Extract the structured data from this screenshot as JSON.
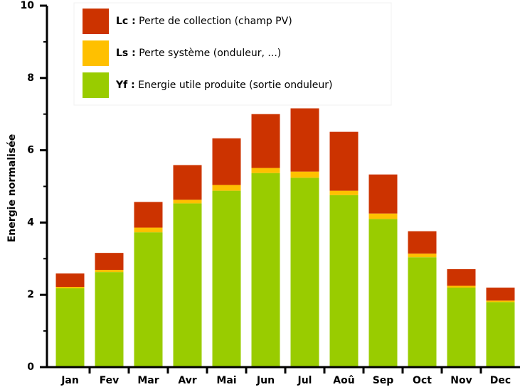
{
  "chart_data": {
    "type": "stacked_bar",
    "y_label": "Energie normalisée",
    "categories": [
      "Jan",
      "Fev",
      "Mar",
      "Avr",
      "Mai",
      "Jun",
      "Jul",
      "Aoû",
      "Sep",
      "Oct",
      "Nov",
      "Dec"
    ],
    "series": [
      {
        "name": "Yf :",
        "description": "Energie utile produite (sortie onduleur)",
        "color": "#99cc00",
        "values": [
          2.18,
          2.63,
          3.73,
          4.53,
          4.88,
          5.37,
          5.24,
          4.76,
          4.1,
          3.04,
          2.2,
          1.8
        ]
      },
      {
        "name": "Ls :",
        "description": "Perte système (onduleur, ...)",
        "color": "#ffc000",
        "values": [
          0.04,
          0.06,
          0.13,
          0.1,
          0.16,
          0.14,
          0.17,
          0.12,
          0.15,
          0.1,
          0.05,
          0.04
        ]
      },
      {
        "name": "Lc :",
        "description": "Perte de collection (champ PV)",
        "color": "#cc3300",
        "values": [
          0.37,
          0.47,
          0.71,
          0.96,
          1.29,
          1.49,
          1.75,
          1.63,
          1.08,
          0.62,
          0.46,
          0.36
        ]
      }
    ],
    "ylim": [
      0,
      10
    ],
    "yticks": [
      0,
      2,
      4,
      6,
      8,
      10
    ],
    "yticks_minor": [
      1,
      3,
      5,
      7,
      9
    ],
    "legend": "top-left"
  }
}
